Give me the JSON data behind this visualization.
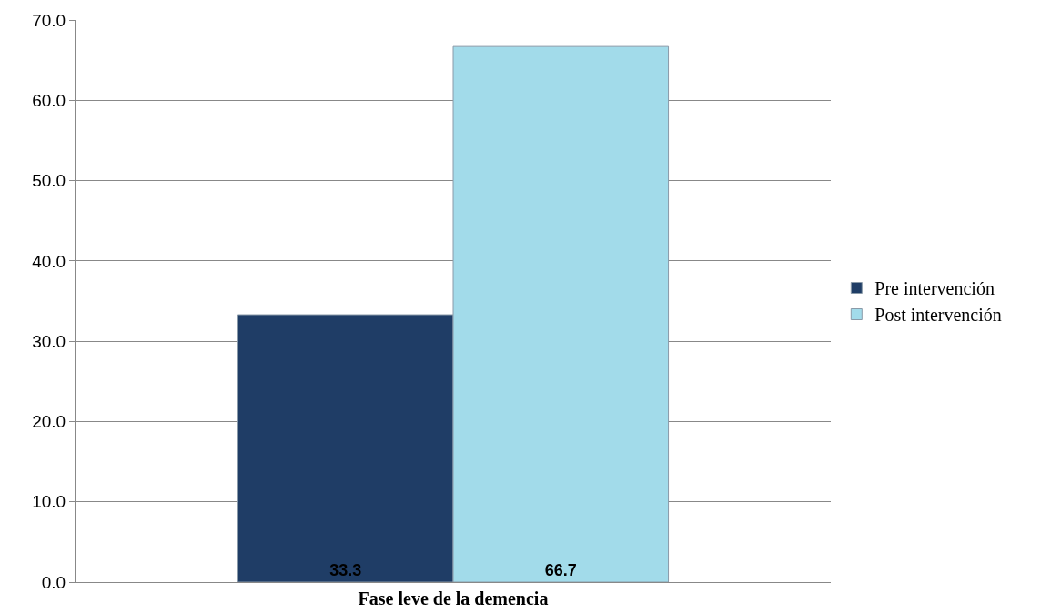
{
  "chart_data": {
    "type": "bar",
    "categories": [
      "Fase leve de la demencia"
    ],
    "series": [
      {
        "name": "Pre intervención",
        "color": "#1f3d66",
        "values": [
          33.3
        ]
      },
      {
        "name": "Post intervención",
        "color": "#a2dbea",
        "values": [
          66.7
        ]
      }
    ],
    "ylim": [
      0,
      70
    ],
    "yticks": [
      {
        "value": 0,
        "label": "0.0"
      },
      {
        "value": 10,
        "label": "10.0"
      },
      {
        "value": 20,
        "label": "20.0"
      },
      {
        "value": 30,
        "label": "30.0"
      },
      {
        "value": 40,
        "label": "40.0"
      },
      {
        "value": 50,
        "label": "50.0"
      },
      {
        "value": 60,
        "label": "60.0"
      },
      {
        "value": 70,
        "label": "70.0"
      }
    ],
    "grid": "y",
    "legend": "right",
    "data_labels": true
  }
}
